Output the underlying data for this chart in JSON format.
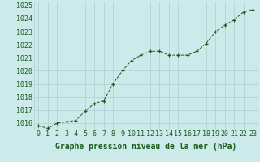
{
  "x": [
    0,
    1,
    2,
    3,
    4,
    5,
    6,
    7,
    8,
    9,
    10,
    11,
    12,
    13,
    14,
    15,
    16,
    17,
    18,
    19,
    20,
    21,
    22,
    23
  ],
  "y": [
    1015.8,
    1015.6,
    1016.0,
    1016.1,
    1016.2,
    1016.9,
    1017.5,
    1017.7,
    1019.0,
    1020.0,
    1020.8,
    1021.2,
    1021.5,
    1021.5,
    1021.2,
    1021.2,
    1021.2,
    1021.5,
    1022.1,
    1023.0,
    1023.5,
    1023.9,
    1024.5,
    1024.7
  ],
  "ylim": [
    1015.5,
    1025.3
  ],
  "yticks": [
    1016,
    1017,
    1018,
    1019,
    1020,
    1021,
    1022,
    1023,
    1024,
    1025
  ],
  "xticks": [
    0,
    1,
    2,
    3,
    4,
    5,
    6,
    7,
    8,
    9,
    10,
    11,
    12,
    13,
    14,
    15,
    16,
    17,
    18,
    19,
    20,
    21,
    22,
    23
  ],
  "xlabel": "Graphe pression niveau de la mer (hPa)",
  "line_color": "#1a5c1a",
  "marker": "+",
  "bg_color": "#cceaea",
  "grid_color": "#aad0d0",
  "tick_color": "#1a5c1a",
  "label_color": "#1a5c1a",
  "xlabel_fontsize": 7,
  "tick_fontsize": 6
}
